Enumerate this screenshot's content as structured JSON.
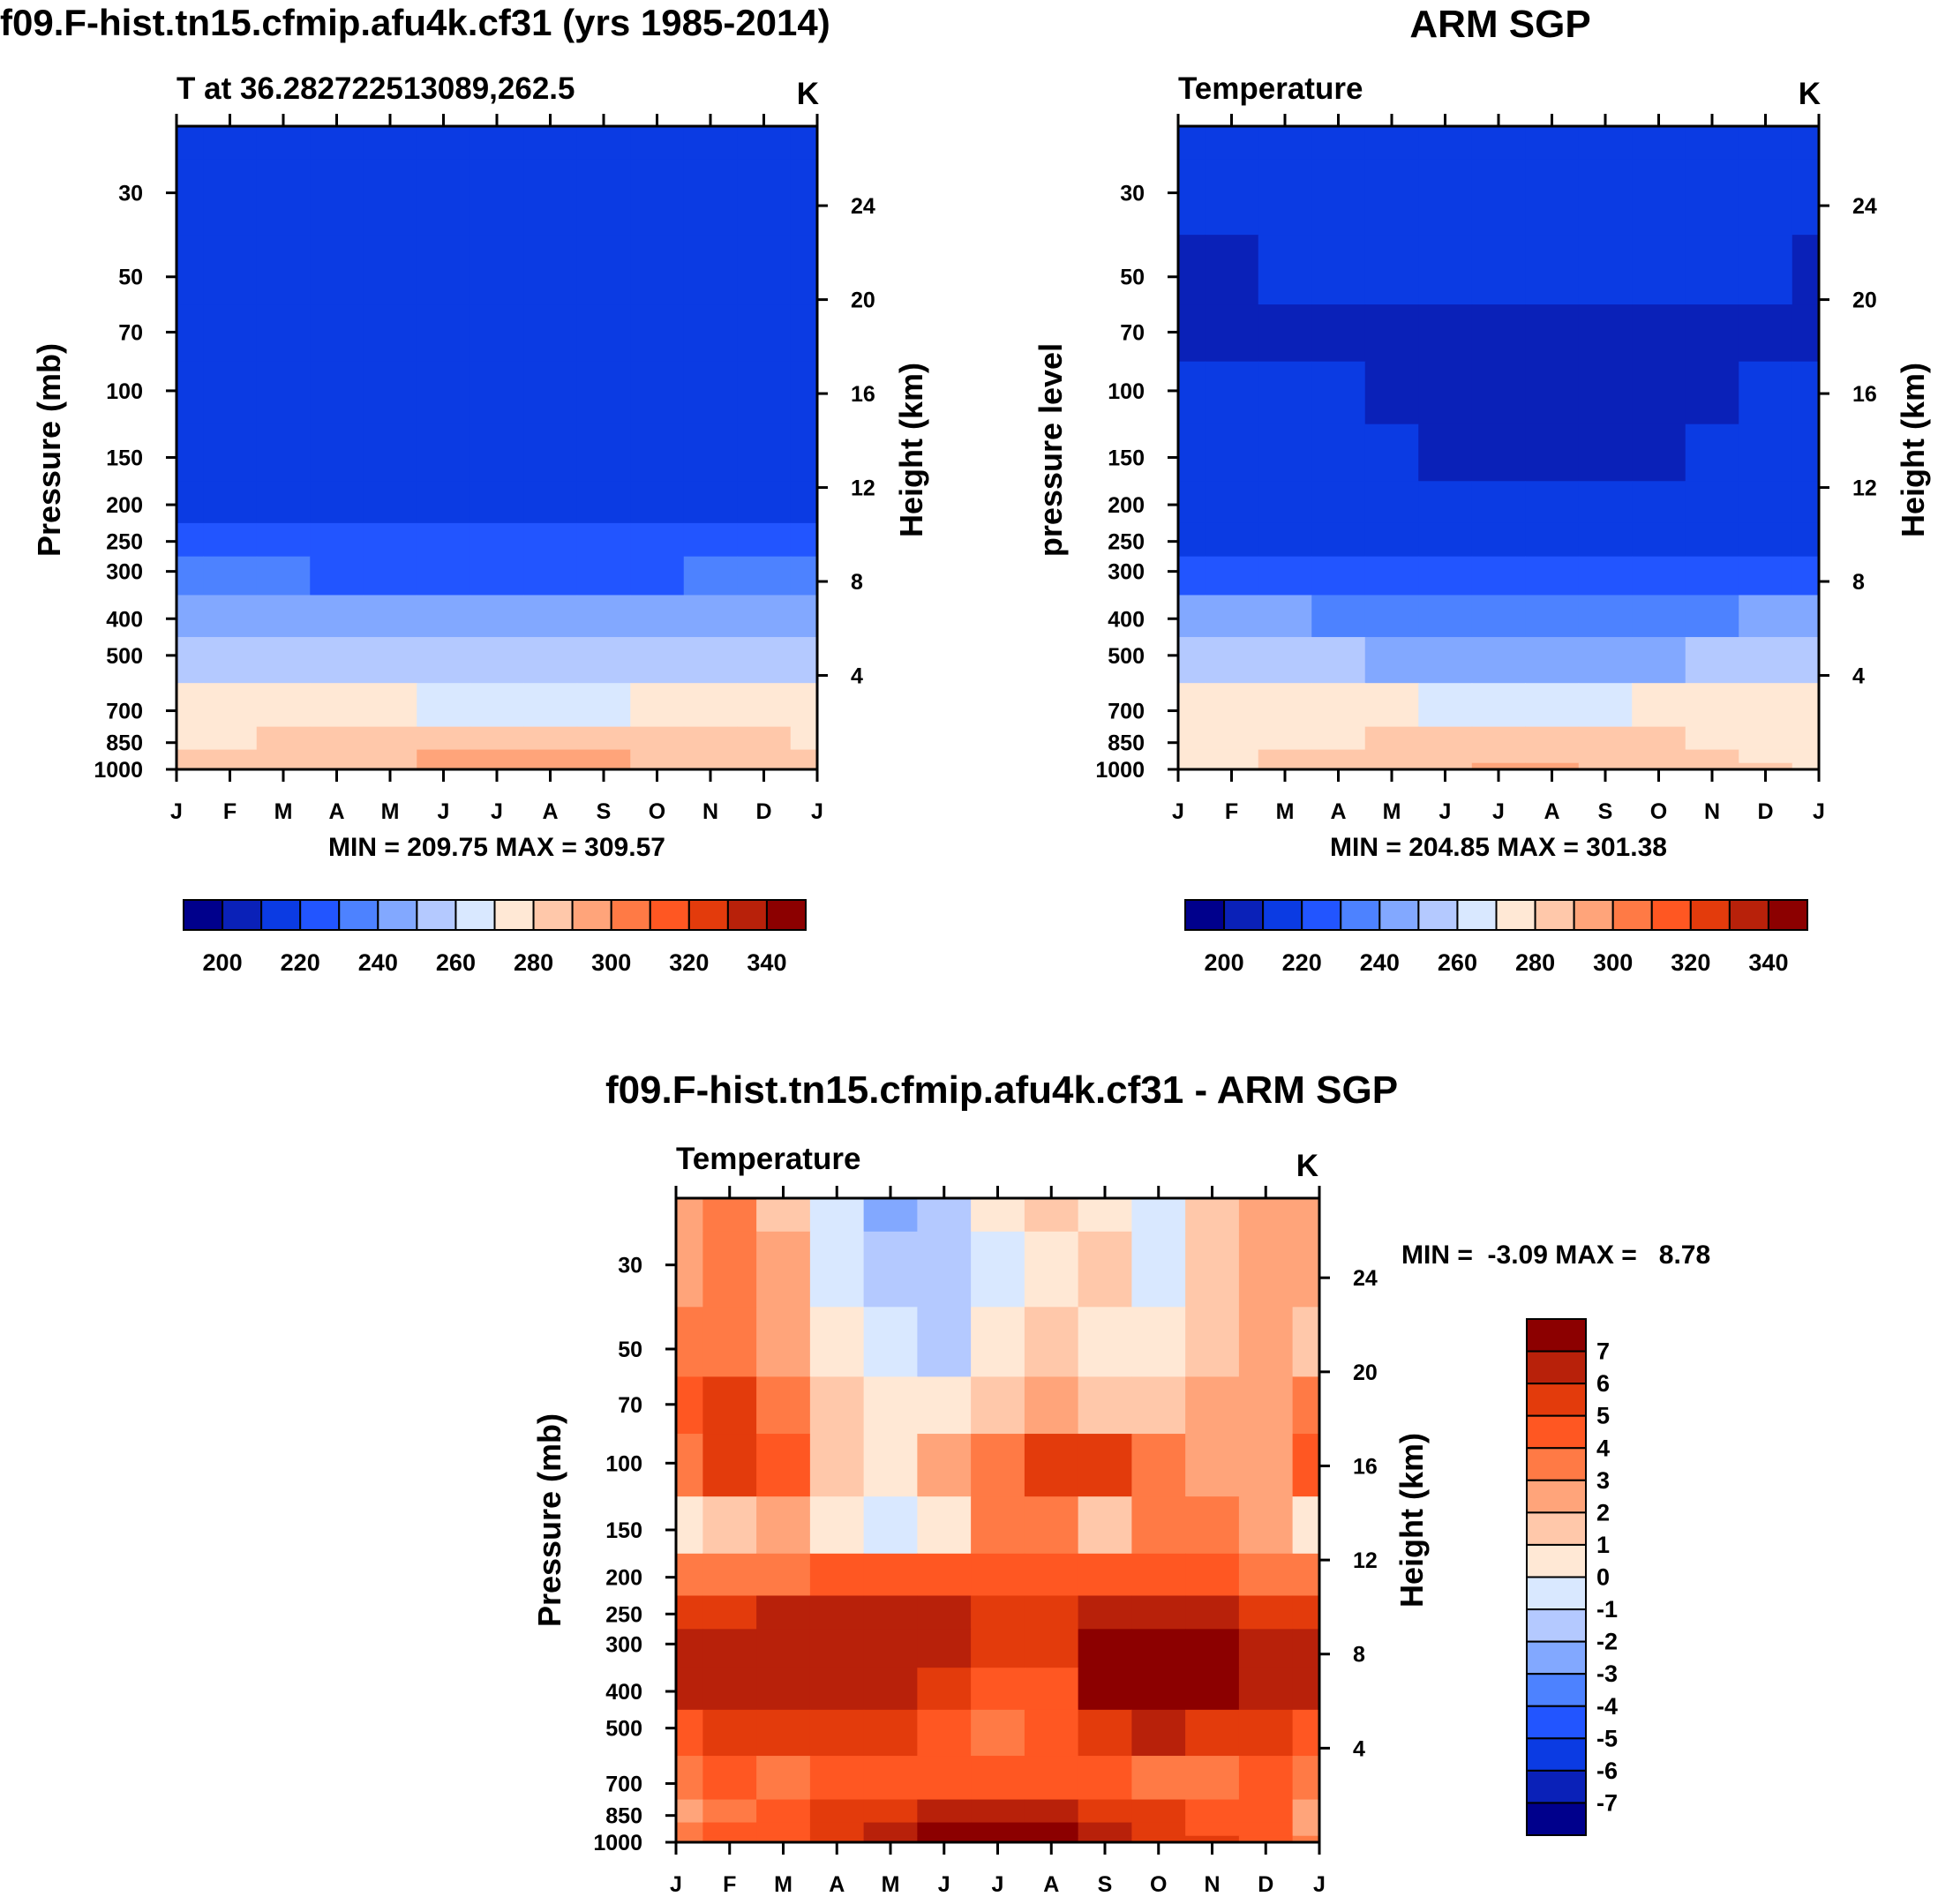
{
  "chart_data": [
    {
      "type": "heatmap",
      "id": "model",
      "title": "f09.F-hist.tn15.cfmip.afu4k.cf31 (yrs 1985-2014)",
      "subtitle_left": "T at 36.282722513089,262.5",
      "subtitle_right": "K",
      "ylabel": "Pressure (mb)",
      "ylabel_right": "Height (km)",
      "xlabel": "",
      "x_ticks": [
        "J",
        "F",
        "M",
        "A",
        "M",
        "J",
        "J",
        "A",
        "S",
        "O",
        "N",
        "D",
        "J"
      ],
      "y_ticks": [
        30,
        50,
        70,
        100,
        150,
        200,
        250,
        300,
        400,
        500,
        700,
        850,
        1000
      ],
      "y_right_ticks": [
        4,
        8,
        12,
        16,
        20,
        24
      ],
      "ylim": [
        1000,
        20
      ],
      "minmax_text": "MIN = 209.75 MAX = 309.57",
      "colorbar": {
        "orientation": "horizontal",
        "labels": [
          "200",
          "220",
          "240",
          "260",
          "280",
          "300",
          "320",
          "340"
        ],
        "levels": [
          195,
          200,
          205,
          210,
          215,
          220,
          225,
          230,
          235,
          240,
          245,
          250,
          255,
          260,
          265,
          270,
          275,
          280,
          285,
          290,
          295,
          300,
          305,
          310,
          315,
          320,
          325,
          330,
          335,
          340,
          345,
          350
        ]
      },
      "pressure_levels": [
        20,
        30,
        50,
        70,
        100,
        150,
        200,
        250,
        300,
        400,
        500,
        700,
        850,
        925,
        1000
      ],
      "values": [
        [
          212,
          212,
          212,
          212,
          213,
          214,
          215,
          215,
          214,
          213,
          212,
          212,
          212
        ],
        [
          213,
          213,
          213,
          213,
          214,
          215,
          216,
          216,
          215,
          214,
          213,
          213,
          213
        ],
        [
          214,
          214,
          214,
          214,
          214,
          214,
          214,
          214,
          214,
          214,
          214,
          214,
          214
        ],
        [
          214,
          214,
          214,
          214,
          214,
          214,
          214,
          214,
          214,
          214,
          214,
          214,
          214
        ],
        [
          214,
          214,
          214,
          214,
          214,
          213,
          214,
          214,
          214,
          214,
          214,
          214,
          214
        ],
        [
          214,
          214,
          214,
          214,
          214,
          214,
          214,
          214,
          214,
          214,
          214,
          214,
          214
        ],
        [
          218,
          218,
          218,
          218,
          217,
          216,
          216,
          216,
          216,
          217,
          218,
          218,
          218
        ],
        [
          224,
          224,
          224,
          223,
          222,
          221,
          220,
          220,
          221,
          222,
          224,
          224,
          224
        ],
        [
          230,
          230,
          230,
          229,
          228,
          227,
          226,
          226,
          227,
          228,
          230,
          230,
          230
        ],
        [
          246,
          246,
          246,
          245,
          243,
          241,
          240,
          240,
          241,
          243,
          245,
          246,
          246
        ],
        [
          256,
          256,
          256,
          255,
          253,
          251,
          250,
          250,
          251,
          253,
          255,
          256,
          256
        ],
        [
          274,
          274,
          274,
          273,
          271,
          269,
          268,
          268,
          269,
          271,
          273,
          274,
          274
        ],
        [
          279,
          279,
          280,
          282,
          284,
          286,
          288,
          288,
          286,
          284,
          281,
          280,
          279
        ],
        [
          281,
          282,
          284,
          286,
          288,
          290,
          291,
          291,
          290,
          287,
          285,
          283,
          281
        ],
        [
          284,
          284,
          286,
          288,
          289,
          291,
          292,
          292,
          291,
          288,
          286,
          285,
          284
        ]
      ]
    },
    {
      "type": "heatmap",
      "id": "obs",
      "title": "ARM SGP",
      "subtitle_left": "Temperature",
      "subtitle_right": "K",
      "ylabel": "pressure level",
      "ylabel_right": "Height (km)",
      "xlabel": "",
      "x_ticks": [
        "J",
        "F",
        "M",
        "A",
        "M",
        "J",
        "J",
        "A",
        "S",
        "O",
        "N",
        "D",
        "J"
      ],
      "y_ticks": [
        30,
        50,
        70,
        100,
        150,
        200,
        250,
        300,
        400,
        500,
        700,
        850,
        1000
      ],
      "y_right_ticks": [
        4,
        8,
        12,
        16,
        20,
        24
      ],
      "ylim": [
        1000,
        20
      ],
      "minmax_text": "MIN = 204.85 MAX = 301.38",
      "colorbar": {
        "orientation": "horizontal",
        "labels": [
          "200",
          "220",
          "240",
          "260",
          "280",
          "300",
          "320",
          "340"
        ],
        "levels": [
          195,
          200,
          205,
          210,
          215,
          220,
          225,
          230,
          235,
          240,
          245,
          250,
          255,
          260,
          265,
          270,
          275,
          280,
          285,
          290,
          295,
          300,
          305,
          310,
          315,
          320,
          325,
          330,
          335,
          340,
          345,
          350
        ]
      },
      "pressure_levels": [
        20,
        30,
        50,
        70,
        100,
        150,
        200,
        250,
        300,
        400,
        500,
        700,
        850,
        925,
        1000
      ],
      "values": [
        [
          211,
          211,
          211,
          211,
          212,
          213,
          214,
          214,
          213,
          212,
          211,
          211,
          211
        ],
        [
          212,
          212,
          212,
          212,
          213,
          214,
          215,
          215,
          214,
          213,
          212,
          212,
          212
        ],
        [
          208,
          208,
          212,
          212,
          212,
          212,
          212,
          212,
          212,
          212,
          212,
          211,
          208
        ],
        [
          208,
          208,
          208,
          208,
          208,
          208,
          208,
          208,
          208,
          208,
          208,
          208,
          208
        ],
        [
          212,
          212,
          212,
          211,
          208,
          207,
          207,
          207,
          207,
          207,
          208,
          211,
          212
        ],
        [
          212,
          212,
          212,
          212,
          212,
          208,
          208,
          208,
          209,
          209,
          212,
          212,
          212
        ],
        [
          214,
          214,
          214,
          214,
          214,
          214,
          214,
          214,
          214,
          214,
          214,
          214,
          214
        ],
        [
          218,
          218,
          218,
          217,
          216,
          216,
          216,
          216,
          216,
          217,
          218,
          218,
          218
        ],
        [
          225,
          225,
          225,
          224,
          222,
          221,
          220,
          220,
          221,
          222,
          224,
          225,
          225
        ],
        [
          240,
          240,
          240,
          239,
          237,
          235,
          234,
          234,
          235,
          237,
          239,
          240,
          240
        ],
        [
          252,
          252,
          252,
          251,
          249,
          247,
          246,
          246,
          247,
          249,
          251,
          252,
          252
        ],
        [
          272,
          272,
          272,
          271,
          270,
          268,
          267,
          267,
          268,
          270,
          271,
          272,
          272
        ],
        [
          276,
          277,
          278,
          279,
          281,
          282,
          283,
          283,
          282,
          280,
          279,
          277,
          276
        ],
        [
          278,
          278,
          280,
          282,
          284,
          286,
          287,
          287,
          286,
          283,
          281,
          279,
          278
        ],
        [
          279,
          279,
          280,
          282,
          285,
          288,
          291,
          291,
          288,
          285,
          282,
          280,
          279
        ]
      ]
    },
    {
      "type": "heatmap",
      "id": "diff",
      "title": "f09.F-hist.tn15.cfmip.afu4k.cf31 - ARM SGP",
      "subtitle_left": "Temperature",
      "subtitle_right": "K",
      "ylabel": "Pressure (mb)",
      "ylabel_right": "Height (km)",
      "xlabel": "",
      "x_ticks": [
        "J",
        "F",
        "M",
        "A",
        "M",
        "J",
        "J",
        "A",
        "S",
        "O",
        "N",
        "D",
        "J"
      ],
      "y_ticks": [
        30,
        50,
        70,
        100,
        150,
        200,
        250,
        300,
        400,
        500,
        700,
        850,
        1000
      ],
      "y_right_ticks": [
        4,
        8,
        12,
        16,
        20,
        24
      ],
      "ylim": [
        1000,
        20
      ],
      "minmax_text": "MIN =  -3.09 MAX =   8.78",
      "colorbar": {
        "orientation": "vertical",
        "labels": [
          "-7",
          "-6",
          "-5",
          "-4",
          "-3",
          "-2",
          "-1",
          "0",
          "1",
          "2",
          "3",
          "4",
          "5",
          "6",
          "7"
        ],
        "levels": [
          -8,
          -7,
          -6,
          -5,
          -4,
          -3,
          -2,
          -1,
          0,
          1,
          2,
          3,
          4,
          5,
          6,
          7,
          8
        ]
      },
      "pressure_levels": [
        20,
        30,
        50,
        70,
        100,
        150,
        200,
        250,
        300,
        400,
        500,
        700,
        850,
        925,
        1000
      ],
      "values": [
        [
          2.5,
          3.5,
          1.5,
          -0.5,
          -2.5,
          -1.2,
          0.5,
          1.2,
          0.8,
          -0.5,
          1.5,
          2.5,
          2.2
        ],
        [
          2.8,
          3.2,
          2.0,
          -0.5,
          -2.0,
          -1.2,
          -0.5,
          0.5,
          1.0,
          -0.3,
          1.5,
          2.5,
          2.5
        ],
        [
          3.2,
          3.5,
          2.5,
          0.8,
          -0.8,
          -1.2,
          0.3,
          1.2,
          0.5,
          0.0,
          1.8,
          2.2,
          1.8
        ],
        [
          4.5,
          5.2,
          3.5,
          1.8,
          0.5,
          0.3,
          1.5,
          2.2,
          1.5,
          1.2,
          2.2,
          2.2,
          3.2
        ],
        [
          3.5,
          5.2,
          4.5,
          1.5,
          0.5,
          2.5,
          3.5,
          5.5,
          5.0,
          3.8,
          2.8,
          2.5,
          4.2
        ],
        [
          0.5,
          1.2,
          2.2,
          0.5,
          -0.8,
          0.8,
          3.5,
          3.5,
          1.0,
          3.5,
          3.2,
          2.0,
          0.5
        ],
        [
          3.2,
          3.5,
          3.8,
          4.0,
          4.2,
          4.5,
          4.8,
          4.5,
          4.2,
          4.5,
          4.2,
          3.8,
          3.5
        ],
        [
          5.5,
          5.8,
          6.2,
          6.5,
          6.5,
          6.2,
          5.8,
          5.5,
          6.2,
          6.5,
          6.2,
          5.8,
          5.5
        ],
        [
          6.5,
          6.2,
          6.2,
          6.8,
          6.5,
          6.2,
          5.5,
          5.2,
          7.5,
          7.8,
          7.5,
          6.5,
          6.2
        ],
        [
          6.2,
          6.5,
          6.5,
          6.8,
          6.2,
          5.8,
          4.2,
          4.5,
          7.2,
          7.8,
          7.2,
          6.2,
          6.0
        ],
        [
          4.8,
          5.2,
          5.5,
          5.5,
          5.2,
          4.2,
          3.5,
          4.5,
          5.5,
          6.2,
          5.8,
          5.2,
          4.8
        ],
        [
          3.2,
          4.2,
          3.2,
          4.5,
          4.8,
          4.5,
          4.5,
          4.8,
          4.5,
          3.8,
          3.5,
          4.2,
          3.5
        ],
        [
          2.5,
          3.5,
          4.2,
          5.5,
          5.8,
          6.8,
          6.5,
          6.0,
          5.5,
          5.2,
          4.8,
          4.5,
          2.5
        ],
        [
          3.0,
          4.2,
          4.5,
          5.2,
          6.0,
          7.2,
          7.2,
          7.0,
          6.5,
          5.5,
          4.8,
          4.2,
          2.8
        ],
        [
          3.5,
          4.5,
          4.8,
          5.5,
          6.5,
          7.5,
          7.5,
          7.2,
          6.8,
          5.8,
          5.2,
          4.5,
          3.5
        ]
      ]
    }
  ],
  "colors": {
    "diverging_16": [
      "#00008c",
      "#0a21b8",
      "#0b3be3",
      "#2255ff",
      "#4d82ff",
      "#82a8ff",
      "#b4c9ff",
      "#d9e8ff",
      "#ffe8d5",
      "#ffc8aa",
      "#ffa47a",
      "#ff7a45",
      "#ff5722",
      "#e33b0c",
      "#b8210a",
      "#8c0000"
    ]
  }
}
